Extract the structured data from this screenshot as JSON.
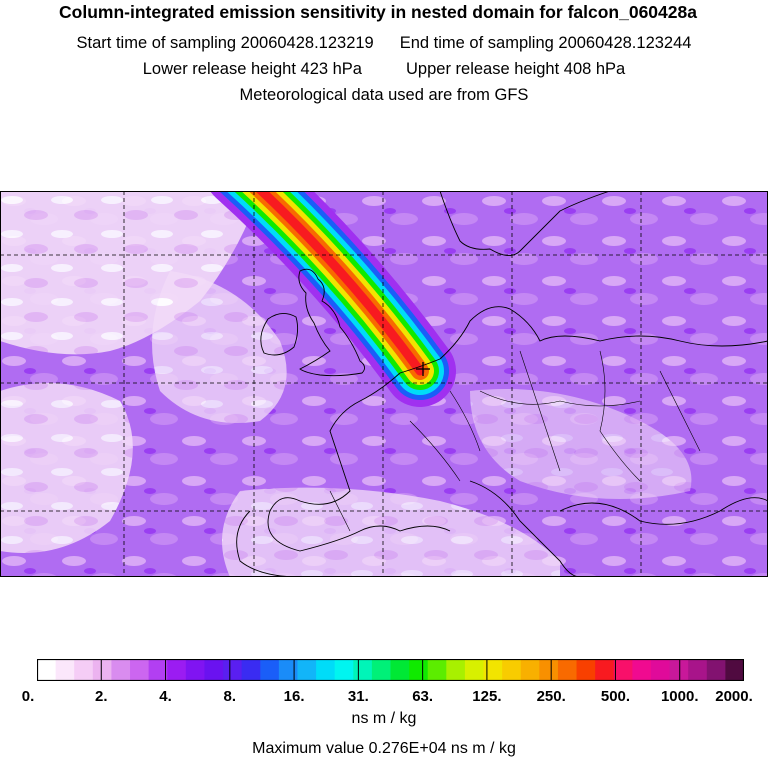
{
  "header": {
    "title": "Column-integrated emission sensitivity in nested domain for falcon_060428a",
    "start_sampling": "Start time of sampling 20060428.123219",
    "end_sampling": "End time of sampling 20060428.123244",
    "lower_release": "Lower release height  423 hPa",
    "upper_release": "Upper release height  408 hPa",
    "met_data": "Meteorological data used are from GFS"
  },
  "colorbar": {
    "tick_labels": [
      "0.",
      "2.",
      "4.",
      "8.",
      "16.",
      "31.",
      "63.",
      "125.",
      "250.",
      "500.",
      "1000.",
      "2000."
    ],
    "units": "ns m / kg",
    "max_value": "Maximum value  0.276E+04 ns m / kg",
    "colors": [
      "#ffffff",
      "#fbe7fb",
      "#f5cdf6",
      "#ecb3f0",
      "#d98cef",
      "#cc66f0",
      "#b23ff2",
      "#9b1cf2",
      "#8014f2",
      "#6a12f0",
      "#5a1ff0",
      "#3a2cf2",
      "#1a5ef8",
      "#1a8cf8",
      "#12b5f8",
      "#00dcf8",
      "#00f5f0",
      "#00f5b8",
      "#00f078",
      "#00e835",
      "#10ea00",
      "#5ced00",
      "#a8f000",
      "#d8f000",
      "#f2e400",
      "#f8cc00",
      "#f8b000",
      "#f89000",
      "#f86a00",
      "#f84000",
      "#f81a20",
      "#f8106a",
      "#f00a90",
      "#e00a9a",
      "#c8189a",
      "#a8148a",
      "#821270",
      "#500a40"
    ]
  },
  "map": {
    "background_color": "#a866f0",
    "plume_colors": [
      "#a030f0",
      "#1a5ef8",
      "#00dcf8",
      "#10ea00",
      "#f2e400",
      "#f86a00",
      "#f81a20"
    ],
    "release_marker": "cross-icon"
  }
}
